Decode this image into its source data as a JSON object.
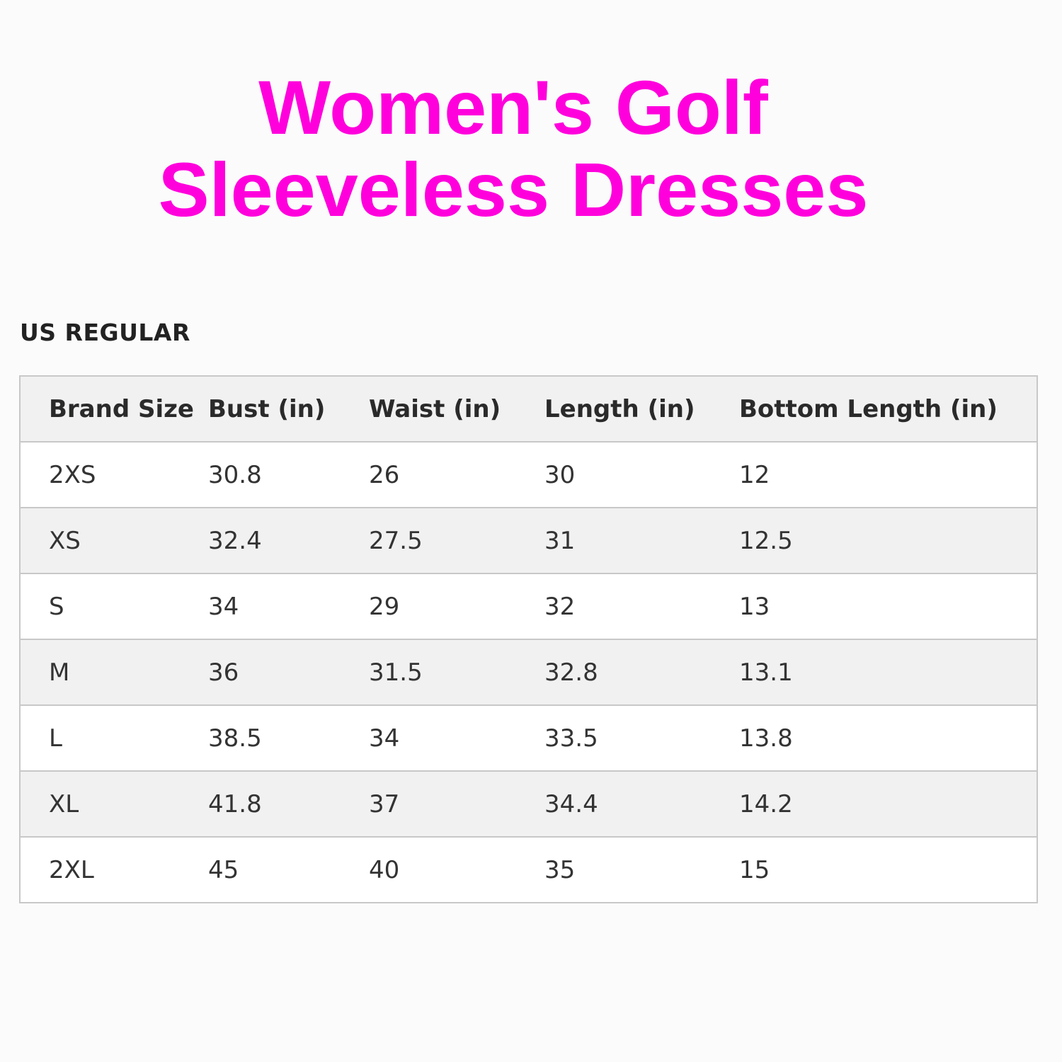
{
  "title": {
    "line1": "Women's Golf",
    "line2": "Sleeveless Dresses",
    "color": "#ff00dd"
  },
  "section_label": "US REGULAR",
  "table": {
    "headers": [
      "Brand Size",
      "Bust (in)",
      "Waist (in)",
      "Length (in)",
      "Bottom Length (in)"
    ],
    "rows": [
      [
        "2XS",
        "30.8",
        "26",
        "30",
        "12"
      ],
      [
        "XS",
        "32.4",
        "27.5",
        "31",
        "12.5"
      ],
      [
        "S",
        "34",
        "29",
        "32",
        "13"
      ],
      [
        "M",
        "36",
        "31.5",
        "32.8",
        "13.1"
      ],
      [
        "L",
        "38.5",
        "34",
        "33.5",
        "13.8"
      ],
      [
        "XL",
        "41.8",
        "37",
        "34.4",
        "14.2"
      ],
      [
        "2XL",
        "45",
        "40",
        "35",
        "15"
      ]
    ]
  }
}
